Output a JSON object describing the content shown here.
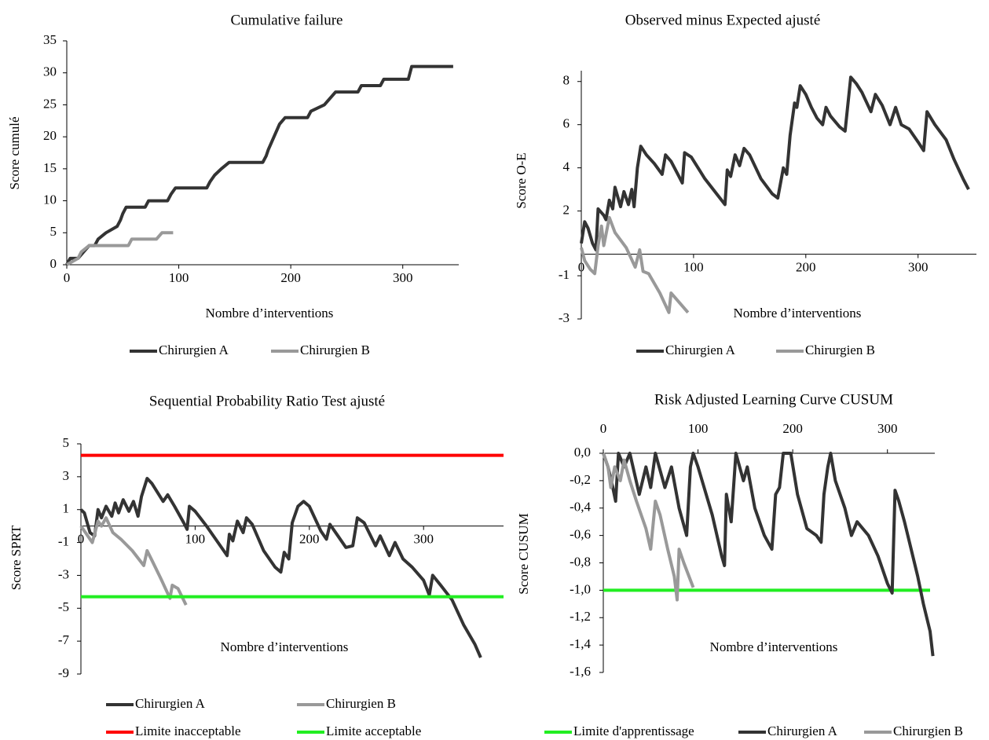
{
  "chart_data": [
    {
      "type": "line",
      "title": "Cumulative failure",
      "xlabel": "Nombre d’interventions",
      "ylabel": "Score cumulé",
      "xlim": [
        0,
        350
      ],
      "ylim": [
        0,
        35
      ],
      "xticks": [
        0,
        100,
        200,
        300
      ],
      "yticks": [
        0,
        5,
        10,
        15,
        20,
        25,
        30,
        35
      ],
      "series": [
        {
          "name": "Chirurgien A",
          "color": "#333333",
          "x": [
            0,
            3,
            10,
            15,
            20,
            25,
            28,
            35,
            45,
            48,
            50,
            53,
            70,
            73,
            90,
            93,
            97,
            125,
            128,
            132,
            138,
            145,
            175,
            178,
            180,
            185,
            190,
            195,
            215,
            218,
            230,
            235,
            240,
            260,
            263,
            280,
            283,
            305,
            308,
            345
          ],
          "values": [
            0,
            1,
            1,
            2,
            3,
            3,
            4,
            5,
            6,
            7,
            8,
            9,
            9,
            10,
            10,
            11,
            12,
            12,
            13,
            14,
            15,
            16,
            16,
            17,
            18,
            20,
            22,
            23,
            23,
            24,
            25,
            26,
            27,
            27,
            28,
            28,
            29,
            29,
            31,
            31
          ]
        },
        {
          "name": "Chirurgien B",
          "color": "#999999",
          "x": [
            0,
            10,
            13,
            20,
            55,
            58,
            80,
            85,
            95
          ],
          "values": [
            0,
            1,
            2,
            3,
            3,
            4,
            4,
            5,
            5
          ]
        }
      ]
    },
    {
      "type": "line",
      "title": "Observed minus Expected ajusté",
      "xlabel": "Nombre d’interventions",
      "ylabel": "Score  O-E",
      "xlim": [
        0,
        352
      ],
      "ylim": [
        -3,
        8.5
      ],
      "xticks": [
        0,
        100,
        200,
        300
      ],
      "yticks": [
        8,
        6,
        4,
        2,
        -1,
        -3
      ],
      "series": [
        {
          "name": "Chirurgien A",
          "color": "#333333",
          "x": [
            0,
            3,
            6,
            10,
            13,
            15,
            20,
            22,
            25,
            28,
            30,
            35,
            38,
            42,
            45,
            47,
            50,
            53,
            58,
            65,
            72,
            75,
            80,
            87,
            90,
            92,
            98,
            110,
            125,
            128,
            130,
            133,
            137,
            141,
            145,
            150,
            160,
            170,
            175,
            180,
            183,
            186,
            190,
            192,
            195,
            200,
            205,
            210,
            215,
            218,
            222,
            230,
            235,
            240,
            245,
            250,
            258,
            262,
            268,
            275,
            280,
            285,
            292,
            300,
            305,
            308,
            315,
            325,
            332,
            340,
            345
          ],
          "values": [
            0.5,
            1.5,
            1.2,
            0.5,
            0.2,
            2.1,
            1.8,
            1.6,
            2.5,
            2.1,
            3.1,
            2.2,
            2.9,
            2.3,
            3.0,
            2.2,
            4.0,
            5.0,
            4.6,
            4.2,
            3.7,
            4.6,
            4.3,
            3.6,
            3.3,
            4.7,
            4.5,
            3.5,
            2.5,
            2.3,
            3.9,
            3.6,
            4.6,
            4.1,
            4.9,
            4.6,
            3.5,
            2.8,
            2.6,
            4.0,
            3.7,
            5.5,
            7.0,
            6.8,
            7.8,
            7.4,
            6.8,
            6.3,
            6.0,
            6.8,
            6.4,
            5.9,
            5.7,
            8.2,
            7.9,
            7.5,
            6.6,
            7.4,
            6.9,
            6.0,
            6.8,
            6.0,
            5.8,
            5.2,
            4.8,
            6.6,
            6.0,
            5.3,
            4.4,
            3.5,
            3.0
          ]
        },
        {
          "name": "Chirurgien B",
          "color": "#999999",
          "x": [
            0,
            3,
            8,
            12,
            15,
            18,
            20,
            25,
            30,
            40,
            48,
            52,
            55,
            60,
            70,
            78,
            80,
            85,
            95
          ],
          "values": [
            0.3,
            -0.3,
            -0.7,
            -0.9,
            0.4,
            1.3,
            0.4,
            1.7,
            1.0,
            0.3,
            -0.6,
            0.2,
            -0.8,
            -0.9,
            -1.8,
            -2.7,
            -1.8,
            -2.1,
            -2.7
          ]
        }
      ]
    },
    {
      "type": "line",
      "title": "Sequential Probability Ratio Test ajusté",
      "xlabel": "Nombre d’interventions",
      "ylabel": "Score SPRT",
      "xlim": [
        0,
        370
      ],
      "ylim": [
        -9,
        5
      ],
      "xticks": [
        0,
        100,
        200,
        300
      ],
      "yticks": [
        5,
        3,
        1,
        -1,
        -3,
        -5,
        -7,
        -9
      ],
      "series": [
        {
          "name": "Chirurgien A",
          "color": "#333333",
          "x": [
            0,
            3,
            8,
            12,
            15,
            18,
            22,
            27,
            30,
            33,
            37,
            42,
            46,
            50,
            53,
            58,
            62,
            72,
            76,
            82,
            90,
            93,
            95,
            100,
            110,
            125,
            128,
            130,
            133,
            137,
            142,
            145,
            150,
            160,
            170,
            175,
            178,
            182,
            185,
            190,
            195,
            200,
            210,
            215,
            218,
            225,
            232,
            238,
            242,
            248,
            258,
            262,
            270,
            275,
            282,
            290,
            300,
            305,
            308,
            315,
            325,
            335,
            345,
            350
          ],
          "values": [
            1,
            0.8,
            -0.4,
            -0.6,
            1.0,
            0.5,
            1.2,
            0.6,
            1.4,
            0.8,
            1.6,
            0.9,
            1.5,
            0.6,
            1.8,
            2.9,
            2.6,
            1.5,
            1.9,
            1.2,
            0.2,
            -0.2,
            1.2,
            0.9,
            0.0,
            -1.5,
            -1.8,
            -0.5,
            -0.9,
            0.3,
            -0.4,
            0.5,
            0.1,
            -1.5,
            -2.5,
            -2.8,
            -1.6,
            -2.0,
            0.2,
            1.2,
            1.5,
            1.2,
            -0.3,
            -0.8,
            0.1,
            -0.6,
            -1.3,
            -1.2,
            0.5,
            0.2,
            -1.2,
            -0.6,
            -1.8,
            -1.0,
            -2.0,
            -2.5,
            -3.3,
            -4.2,
            -3.0,
            -3.6,
            -4.5,
            -6.0,
            -7.2,
            -8.0
          ]
        },
        {
          "name": "Chirurgien B",
          "color": "#999999",
          "x": [
            0,
            5,
            10,
            15,
            18,
            22,
            28,
            35,
            45,
            55,
            58,
            63,
            70,
            78,
            80,
            85,
            92
          ],
          "values": [
            0,
            -0.5,
            -1.0,
            0.3,
            0.0,
            0.5,
            -0.4,
            -0.8,
            -1.5,
            -2.4,
            -1.5,
            -2.2,
            -3.2,
            -4.4,
            -3.6,
            -3.8,
            -4.8
          ]
        },
        {
          "name": "Limite inacceptable",
          "color": "#ff0000",
          "x": [
            0,
            370
          ],
          "values": [
            4.3,
            4.3
          ]
        },
        {
          "name": "Limite acceptable",
          "color": "#22ee22",
          "x": [
            0,
            370
          ],
          "values": [
            -4.3,
            -4.3
          ]
        }
      ]
    },
    {
      "type": "line",
      "title": "Risk Adjusted Learning Curve CUSUM",
      "xlabel": "Nombre d’interventions",
      "ylabel": "Score CUSUM",
      "xaxis_position": "top",
      "xlim": [
        0,
        350
      ],
      "ylim": [
        -1.6,
        0
      ],
      "xticks": [
        0,
        100,
        200,
        300
      ],
      "yticks": [
        {
          "value": 0,
          "label": "0,0"
        },
        {
          "value": -0.2,
          "label": "-0,2"
        },
        {
          "value": -0.4,
          "label": "-0,4"
        },
        {
          "value": -0.6,
          "label": "-0,6"
        },
        {
          "value": -0.8,
          "label": "-0,8"
        },
        {
          "value": -1.0,
          "label": "-1,0"
        },
        {
          "value": -1.2,
          "label": "-1,2"
        },
        {
          "value": -1.4,
          "label": "-1,4"
        },
        {
          "value": -1.6,
          "label": "-1,6"
        }
      ],
      "series": [
        {
          "name": "Limite d'apprentissage",
          "color": "#22ee22",
          "x": [
            0,
            345
          ],
          "values": [
            -1.0,
            -1.0
          ]
        },
        {
          "name": "Chirurgien A",
          "color": "#333333",
          "x": [
            0,
            5,
            10,
            13,
            16,
            22,
            28,
            38,
            45,
            50,
            55,
            65,
            72,
            80,
            88,
            92,
            95,
            100,
            115,
            125,
            128,
            130,
            135,
            140,
            148,
            152,
            160,
            170,
            178,
            182,
            186,
            190,
            198,
            205,
            215,
            225,
            230,
            233,
            237,
            240,
            245,
            255,
            262,
            268,
            280,
            290,
            300,
            305,
            308,
            312,
            318,
            325,
            332,
            338,
            345,
            348
          ],
          "values": [
            0,
            -0.1,
            -0.25,
            -0.35,
            0,
            -0.1,
            0,
            -0.3,
            -0.1,
            -0.25,
            0,
            -0.25,
            -0.1,
            -0.4,
            -0.6,
            -0.1,
            0,
            -0.1,
            -0.45,
            -0.75,
            -0.82,
            -0.3,
            -0.5,
            0,
            -0.2,
            -0.1,
            -0.4,
            -0.6,
            -0.7,
            -0.3,
            -0.25,
            0,
            0,
            -0.3,
            -0.55,
            -0.6,
            -0.65,
            -0.3,
            -0.1,
            0,
            -0.2,
            -0.4,
            -0.6,
            -0.5,
            -0.6,
            -0.75,
            -0.95,
            -1.02,
            -0.27,
            -0.35,
            -0.5,
            -0.7,
            -0.9,
            -1.1,
            -1.3,
            -1.48
          ]
        },
        {
          "name": "Chirurgien B",
          "color": "#999999",
          "x": [
            0,
            5,
            8,
            12,
            18,
            22,
            28,
            35,
            45,
            50,
            55,
            60,
            68,
            75,
            78,
            80,
            85,
            95
          ],
          "values": [
            0,
            -0.1,
            -0.25,
            -0.1,
            -0.2,
            -0.05,
            -0.2,
            -0.35,
            -0.55,
            -0.7,
            -0.35,
            -0.45,
            -0.7,
            -0.9,
            -1.07,
            -0.7,
            -0.8,
            -0.98
          ]
        }
      ]
    }
  ]
}
